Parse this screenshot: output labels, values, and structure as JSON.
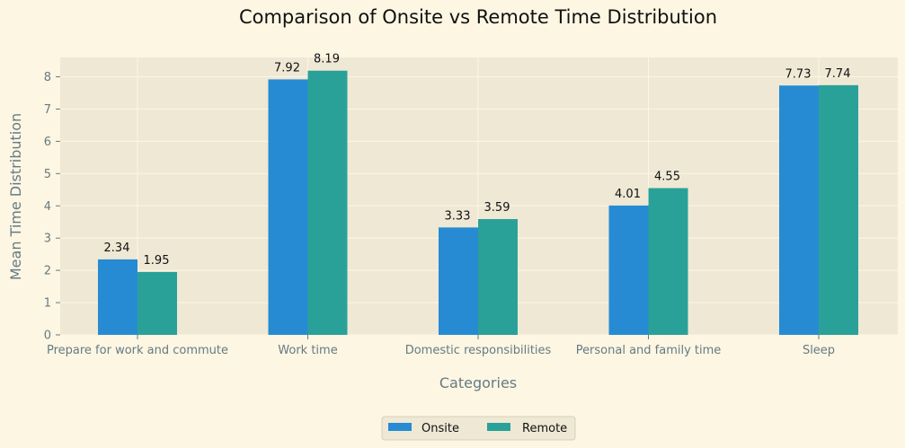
{
  "chart_data": {
    "type": "bar",
    "title": "Comparison of Onsite vs Remote Time Distribution",
    "xlabel": "Categories",
    "ylabel": "Mean Time Distribution",
    "categories": [
      "Prepare for work and commute",
      "Work time",
      "Domestic responsibilities",
      "Personal and family time",
      "Sleep"
    ],
    "series": [
      {
        "name": "Onsite",
        "values": [
          2.34,
          7.92,
          3.33,
          4.01,
          7.73
        ],
        "color": "#268bd2"
      },
      {
        "name": "Remote",
        "values": [
          1.95,
          8.19,
          3.59,
          4.55,
          7.74
        ],
        "color": "#2aa198"
      }
    ],
    "ylim": [
      0,
      8.6
    ],
    "yticks": [
      0,
      1,
      2,
      3,
      4,
      5,
      6,
      7,
      8
    ],
    "grid": true,
    "legend": "bottom-center"
  },
  "colors": {
    "background": "#fdf6e3",
    "plot_background": "#eee8d5",
    "grid": "#fdf6e3",
    "text": "#657b83"
  }
}
